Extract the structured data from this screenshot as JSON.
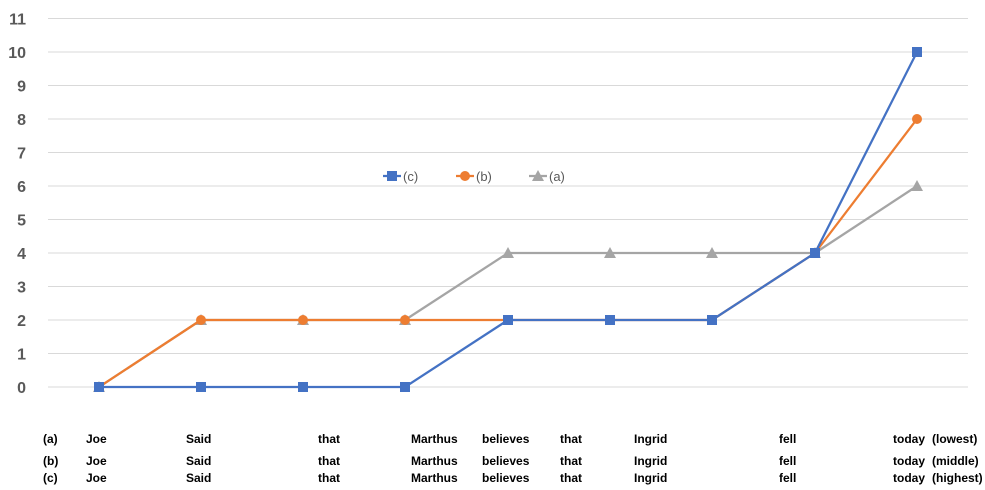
{
  "chart_data": {
    "type": "line",
    "y_ticks": [
      "0",
      "1",
      "2",
      "3",
      "4",
      "5",
      "6",
      "7",
      "8",
      "9",
      "10",
      "11"
    ],
    "ylim": [
      0,
      11
    ],
    "grid": true,
    "legend_position": "center",
    "series": [
      {
        "name": "(c)",
        "color": "#4472C4",
        "marker": "square",
        "values": [
          0,
          0,
          0,
          0,
          2,
          2,
          2,
          4,
          10
        ]
      },
      {
        "name": "(b)",
        "color": "#ED7D31",
        "marker": "circle",
        "values": [
          0,
          2,
          2,
          2,
          2,
          2,
          2,
          4,
          8
        ]
      },
      {
        "name": "(a)",
        "color": "#A5A5A5",
        "marker": "triangle",
        "values": [
          0,
          2,
          2,
          2,
          4,
          4,
          4,
          4,
          6
        ]
      }
    ],
    "rows": [
      {
        "label": "(a)",
        "words": [
          "Joe",
          "Said",
          "that",
          "Marthus",
          "believes",
          "that",
          "Ingrid",
          "fell",
          "today"
        ],
        "note": "(lowest)"
      },
      {
        "label": "(b)",
        "words": [
          "Joe",
          "Said",
          "that",
          "Marthus",
          "believes",
          "that",
          "Ingrid",
          "fell",
          "today"
        ],
        "note": "(middle)"
      },
      {
        "label": "(c)",
        "words": [
          "Joe",
          "Said",
          "that",
          "Marthus",
          "believes",
          "that",
          "Ingrid",
          "fell",
          "today"
        ],
        "note": "(highest)"
      }
    ]
  }
}
